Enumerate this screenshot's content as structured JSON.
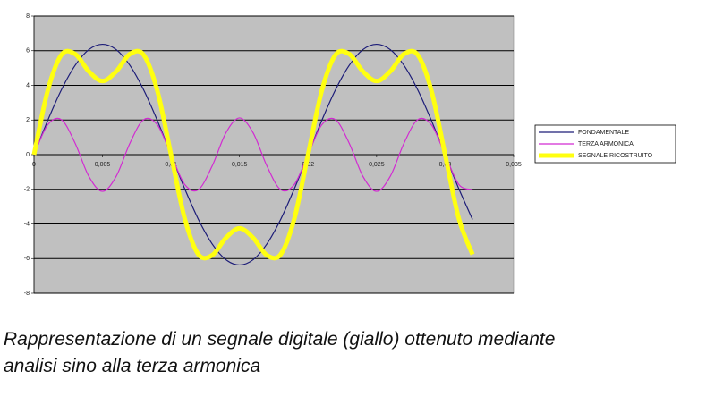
{
  "chart_data": {
    "type": "line",
    "x": [
      0,
      0.001,
      0.002,
      0.003,
      0.004,
      0.005,
      0.006,
      0.007,
      0.008,
      0.009,
      0.01,
      0.011,
      0.012,
      0.013,
      0.014,
      0.015,
      0.016,
      0.017,
      0.018,
      0.019,
      0.02,
      0.021,
      0.022,
      0.023,
      0.024,
      0.025,
      0.026,
      0.027,
      0.028,
      0.029,
      0.03,
      0.031,
      0.032
    ],
    "series": [
      {
        "name": "FONDAMENTALE",
        "color": "#1c1c78",
        "width": 1.2,
        "values": [
          0,
          1.97,
          3.74,
          5.15,
          6.06,
          6.37,
          6.06,
          5.15,
          3.74,
          1.97,
          0,
          -1.97,
          -3.74,
          -5.15,
          -6.06,
          -6.37,
          -6.06,
          -5.15,
          -3.74,
          -1.97,
          0,
          1.97,
          3.74,
          5.15,
          6.06,
          6.37,
          6.06,
          5.15,
          3.74,
          1.97,
          0,
          -1.97,
          -3.74
        ]
      },
      {
        "name": "TERZA ARMONICA",
        "color": "#d22ad2",
        "width": 1.2,
        "values": [
          0,
          1.72,
          2.02,
          0.66,
          -1.25,
          -2.12,
          -1.25,
          0.66,
          2.02,
          1.72,
          0,
          -1.72,
          -2.02,
          -0.66,
          1.25,
          2.12,
          1.25,
          -0.66,
          -2.02,
          -1.72,
          0,
          1.72,
          2.02,
          0.66,
          -1.25,
          -2.12,
          -1.25,
          0.66,
          2.02,
          1.72,
          0,
          -1.72,
          -2.02
        ]
      },
      {
        "name": "SEGNALE RICOSTRUITO",
        "color": "#ffff10",
        "width": 5,
        "values": [
          0,
          3.69,
          5.76,
          5.81,
          4.81,
          4.25,
          4.81,
          5.81,
          5.76,
          3.69,
          0,
          -3.69,
          -5.76,
          -5.81,
          -4.81,
          -4.25,
          -4.81,
          -5.81,
          -5.76,
          -3.69,
          0,
          3.69,
          5.76,
          5.81,
          4.81,
          4.25,
          4.81,
          5.81,
          5.76,
          3.69,
          0,
          -3.69,
          -5.76
        ]
      }
    ],
    "xlim": [
      0,
      0.035
    ],
    "xticks": [
      0,
      {
        "value": 0.005,
        "label": "0,005"
      },
      {
        "value": 0.01,
        "label": "0,01"
      },
      {
        "value": 0.015,
        "label": "0,015"
      },
      {
        "value": 0.02,
        "label": "0,02"
      },
      {
        "value": 0.025,
        "label": "0,025"
      },
      {
        "value": 0.03,
        "label": "0,03"
      },
      {
        "value": 0.035,
        "label": "0,035"
      }
    ],
    "ylim": [
      -8,
      8
    ],
    "yticks": [
      -8,
      -6,
      -4,
      -2,
      0,
      2,
      4,
      6,
      8
    ],
    "grid": true,
    "legend": "right",
    "plot_background": "#c0c0c0"
  },
  "caption": [
    "Rappresentazione di un segnale digitale (giallo) ottenuto mediante",
    "analisi sino alla terza armonica"
  ]
}
